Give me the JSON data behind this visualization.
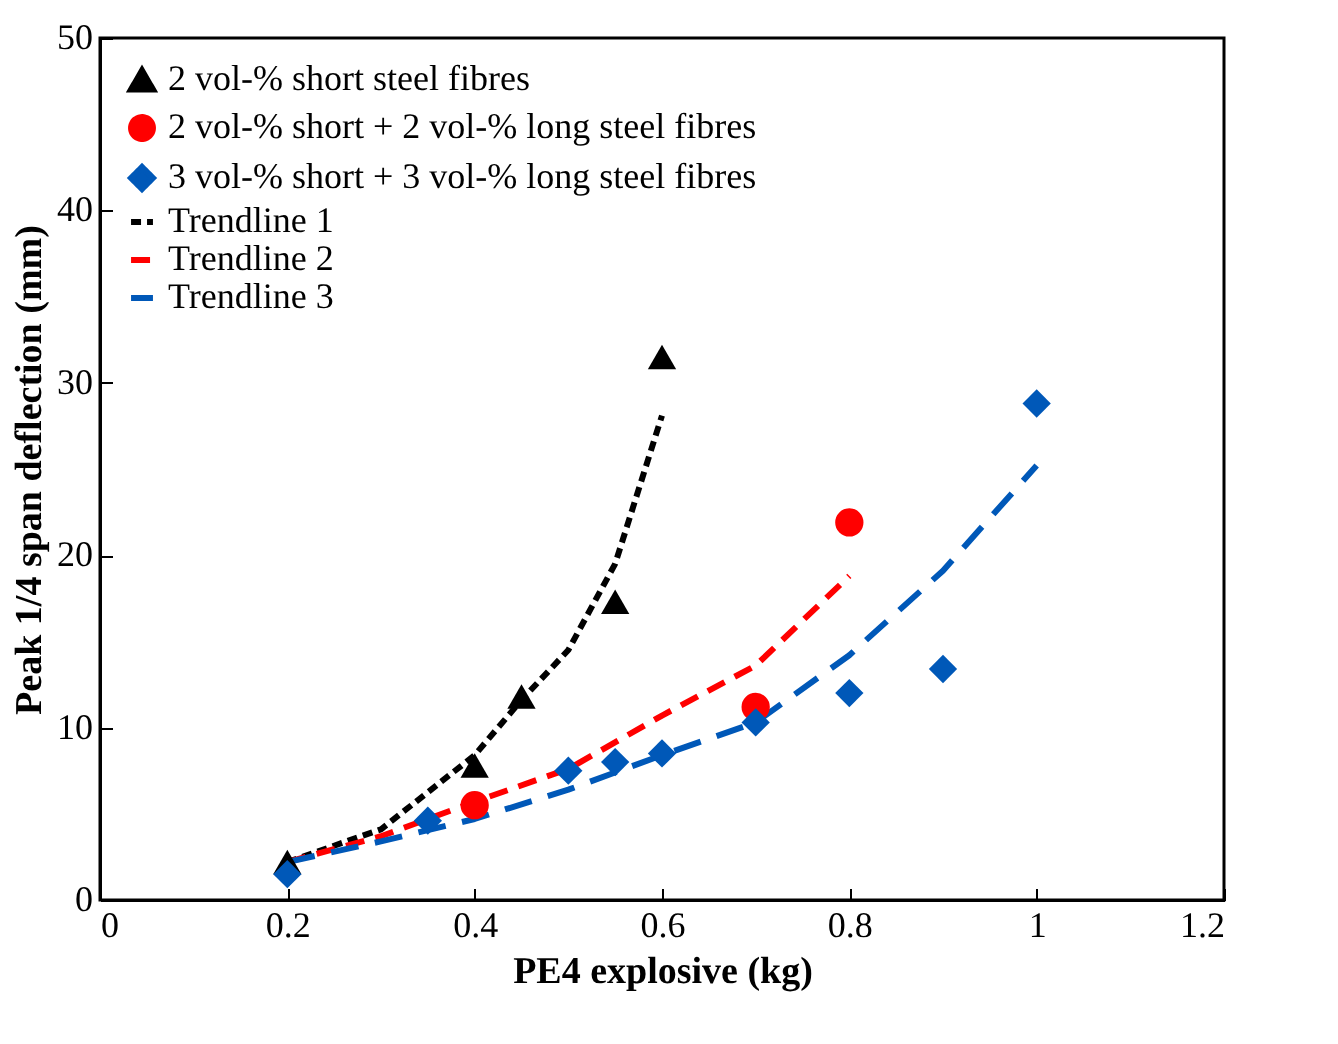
{
  "chart_data": {
    "type": "scatter",
    "xlabel": "PE4 explosive (kg)",
    "ylabel": "Peak 1/4 span deflection (mm)",
    "xlim": [
      0,
      1.2
    ],
    "xticks": [
      0,
      0.2,
      0.4,
      0.6,
      0.8,
      1,
      1.2
    ],
    "ylim": [
      0,
      50
    ],
    "yticks": [
      0,
      10,
      20,
      30,
      40,
      50
    ],
    "grid": false,
    "legend": "top left",
    "series": [
      {
        "name": "2 vol-% short steel fibres",
        "type": "scatter",
        "marker": "triangle",
        "color": "#000000",
        "x": [
          0.2,
          0.4,
          0.45,
          0.55,
          0.6
        ],
        "values": [
          2.2,
          7.8,
          11.8,
          17.3,
          31.5
        ]
      },
      {
        "name": "2 vol-% short + 2 vol-% long steel fibres",
        "type": "scatter",
        "marker": "circle",
        "color": "#ff0000",
        "x": [
          0.4,
          0.7,
          0.8
        ],
        "values": [
          5.5,
          11.2,
          21.9
        ]
      },
      {
        "name": "3 vol-% short + 3 vol-% long steel fibres",
        "type": "scatter",
        "marker": "diamond",
        "color": "#0058b8",
        "x": [
          0.2,
          0.35,
          0.5,
          0.55,
          0.6,
          0.7,
          0.8,
          0.9,
          1.0
        ],
        "values": [
          1.5,
          4.6,
          7.5,
          8.0,
          8.5,
          10.3,
          12.0,
          13.4,
          28.8
        ]
      },
      {
        "name": "Trendline 1",
        "type": "line",
        "line_style": "dashed",
        "color": "#000000",
        "x": [
          0.2,
          0.3,
          0.4,
          0.45,
          0.5,
          0.55,
          0.6
        ],
        "values": [
          2.2,
          4.1,
          8.4,
          11.6,
          14.5,
          19.5,
          28.1
        ]
      },
      {
        "name": "Trendline 2",
        "type": "line",
        "line_style": "dashed",
        "color": "#ff0000",
        "x": [
          0.2,
          0.3,
          0.4,
          0.5,
          0.6,
          0.7,
          0.8
        ],
        "values": [
          2.2,
          3.7,
          5.7,
          7.6,
          10.7,
          13.6,
          18.8
        ]
      },
      {
        "name": "Trendline 3",
        "type": "line",
        "line_style": "dashed",
        "color": "#0058b8",
        "x": [
          0.2,
          0.3,
          0.4,
          0.5,
          0.6,
          0.7,
          0.8,
          0.9,
          1.0
        ],
        "values": [
          2.2,
          3.4,
          4.7,
          6.4,
          8.4,
          10.3,
          14.2,
          19.1,
          25.2
        ]
      }
    ]
  }
}
